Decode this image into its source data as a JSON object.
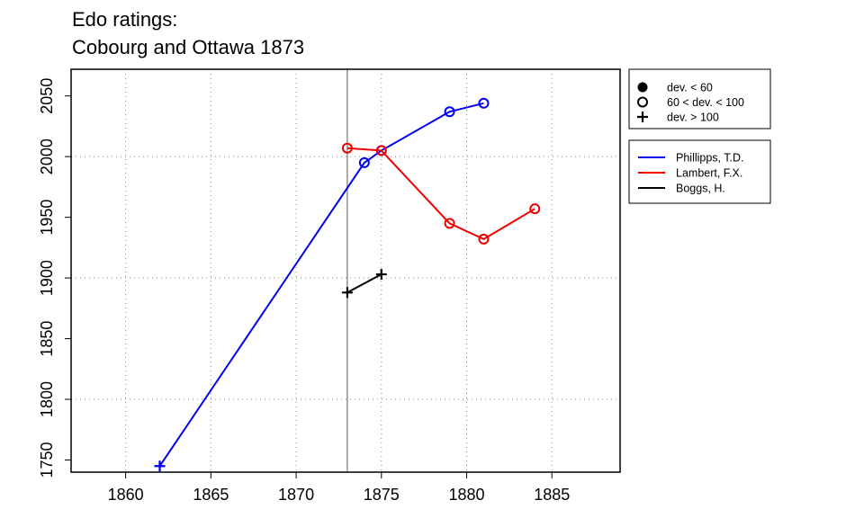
{
  "title_line1": "Edo ratings:",
  "title_line2": "Cobourg and Ottawa 1873",
  "chart_data": {
    "type": "line",
    "title": "Edo ratings: Cobourg and Ottawa 1873",
    "xlabel": "",
    "ylabel": "",
    "xlim": [
      1856.8,
      1889.0
    ],
    "ylim": [
      1740,
      2072
    ],
    "x_ticks": [
      1860,
      1865,
      1870,
      1875,
      1880,
      1885
    ],
    "y_ticks": [
      1750,
      1800,
      1850,
      1900,
      1950,
      2000,
      2050
    ],
    "grid": true,
    "reference_line_x": 1873,
    "legend_markers": [
      {
        "label": "dev. < 60",
        "marker": "filled-circle"
      },
      {
        "label": "60 < dev. < 100",
        "marker": "open-circle"
      },
      {
        "label": "dev. > 100",
        "marker": "plus"
      }
    ],
    "series": [
      {
        "name": "Phillipps, T.D.",
        "color": "#0000ee",
        "points": [
          {
            "x": 1862,
            "y": 1745,
            "marker": "plus"
          },
          {
            "x": 1874,
            "y": 1995,
            "marker": "open-circle"
          },
          {
            "x": 1875,
            "y": 2005,
            "marker": "open-circle"
          },
          {
            "x": 1879,
            "y": 2037,
            "marker": "open-circle"
          },
          {
            "x": 1881,
            "y": 2044,
            "marker": "open-circle"
          }
        ]
      },
      {
        "name": "Lambert, F.X.",
        "color": "#ee0000",
        "points": [
          {
            "x": 1873,
            "y": 2007,
            "marker": "open-circle"
          },
          {
            "x": 1875,
            "y": 2005,
            "marker": "open-circle"
          },
          {
            "x": 1879,
            "y": 1945,
            "marker": "open-circle"
          },
          {
            "x": 1881,
            "y": 1932,
            "marker": "open-circle"
          },
          {
            "x": 1884,
            "y": 1957,
            "marker": "open-circle"
          }
        ]
      },
      {
        "name": "Boggs, H.",
        "color": "#000000",
        "points": [
          {
            "x": 1873,
            "y": 1888,
            "marker": "plus"
          },
          {
            "x": 1875,
            "y": 1903,
            "marker": "plus"
          }
        ]
      }
    ]
  }
}
